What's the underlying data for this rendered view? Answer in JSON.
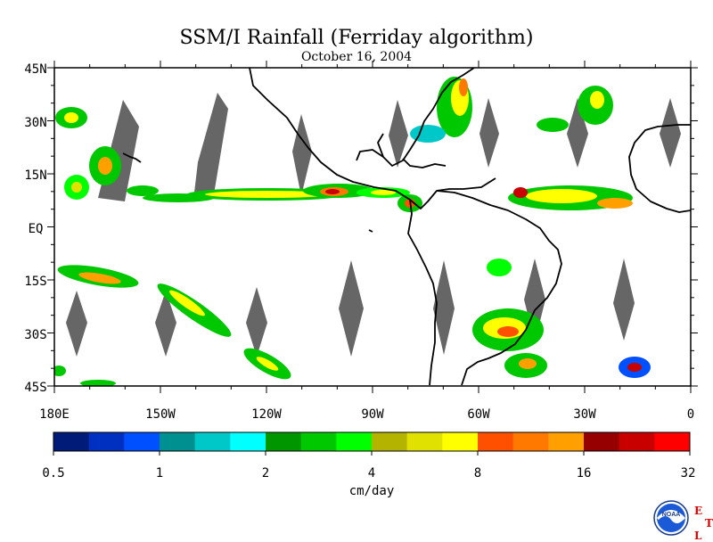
{
  "title": "SSM/I Rainfall (Ferriday algorithm)",
  "subtitle": "October 16, 2004",
  "map": {
    "lon_range": [
      180,
      360
    ],
    "lat_range": [
      -45,
      45
    ],
    "lat_ticks": [
      "45N",
      "30N",
      "15N",
      "EQ",
      "15S",
      "30S",
      "45S"
    ],
    "lon_ticks": [
      "180E",
      "150W",
      "120W",
      "90W",
      "60W",
      "30W",
      "0"
    ],
    "land_outline_color": "#000000",
    "no_data_color": "#666666"
  },
  "colorbar": {
    "unit": "cm/day",
    "tick_labels": [
      "0.5",
      "1",
      "2",
      "4",
      "8",
      "16",
      "32"
    ],
    "colors": [
      "#001c78",
      "#0030c0",
      "#0050ff",
      "#009090",
      "#00c8c8",
      "#00ffff",
      "#009600",
      "#00c800",
      "#00ff00",
      "#b4b400",
      "#e1e100",
      "#ffff00",
      "#ff5000",
      "#ff7800",
      "#ffa000",
      "#960000",
      "#c80000",
      "#ff0000"
    ]
  },
  "logo": {
    "text": "NOAA",
    "mark_letters": [
      "E",
      "T",
      "L"
    ]
  }
}
